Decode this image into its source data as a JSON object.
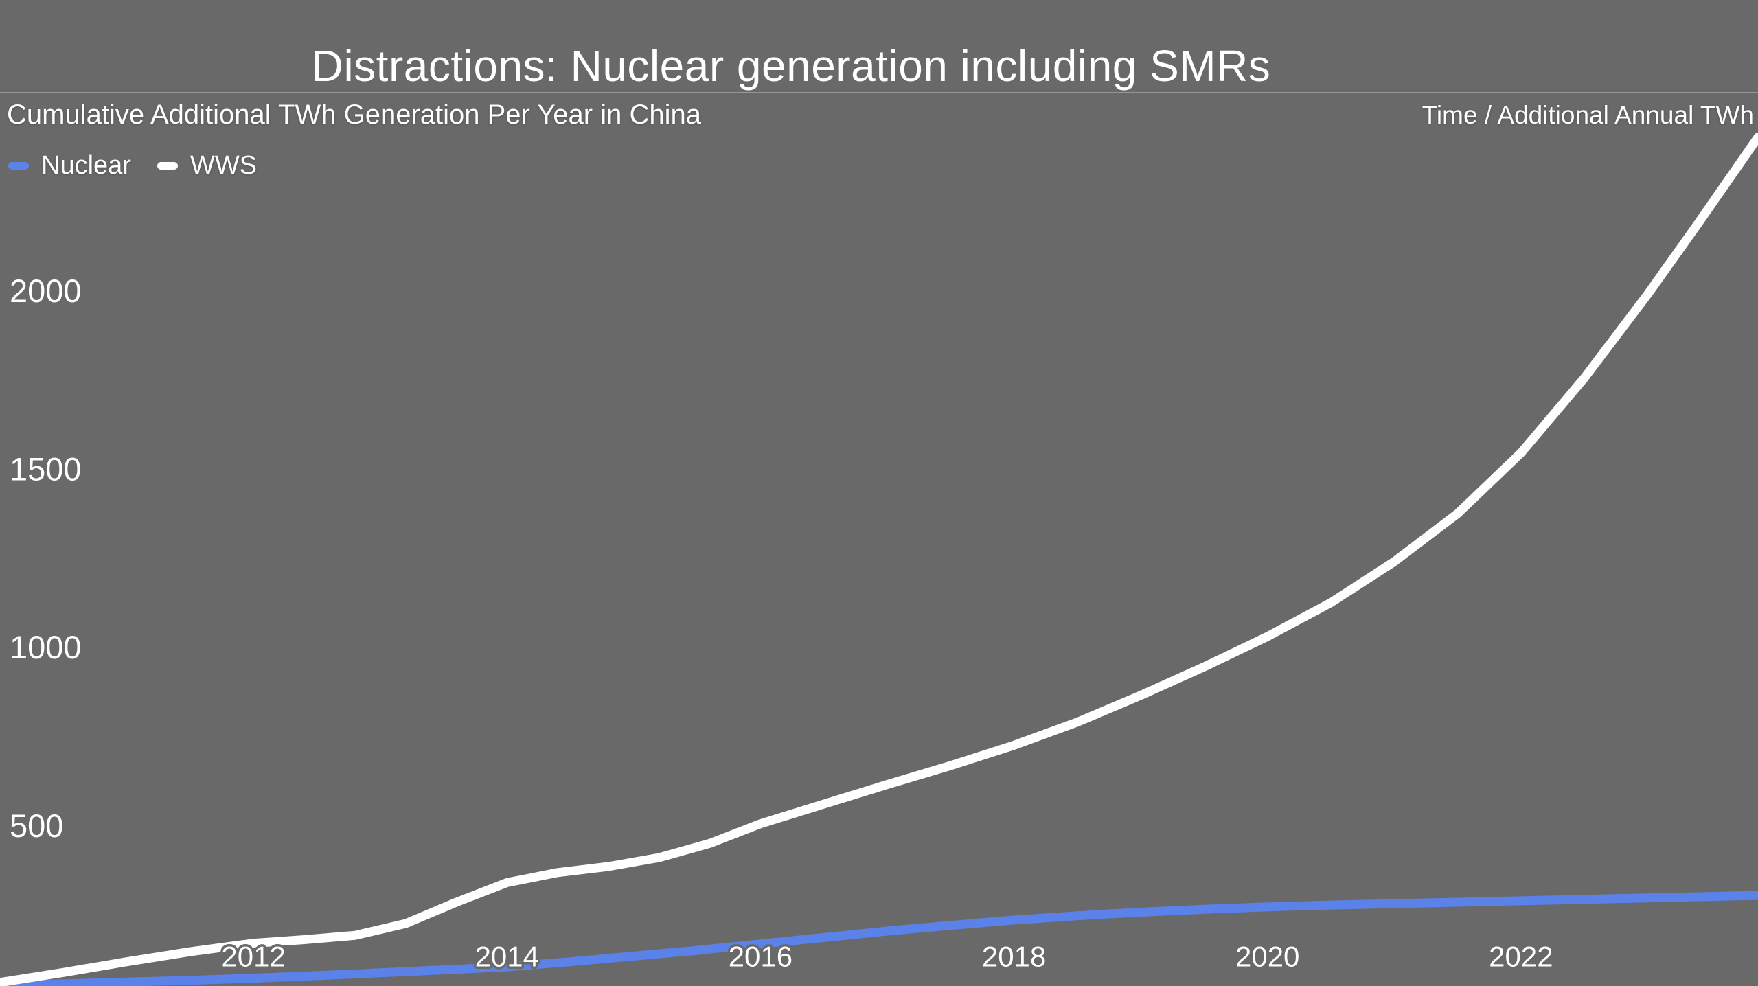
{
  "page": {
    "background_color": "#696969",
    "text_color": "#ffffff"
  },
  "header": {
    "title": "Distractions: Nuclear generation including SMRs"
  },
  "subheader": {
    "chart_title": "Cumulative Additional TWh Generation Per Year in China",
    "axis_caption": "Time / Additional Annual TWh"
  },
  "legend": {
    "items": [
      {
        "label": "Nuclear",
        "color": "#5b82e8"
      },
      {
        "label": "WWS",
        "color": "#ffffff"
      }
    ]
  },
  "chart_data": {
    "type": "line",
    "title": "Cumulative Additional TWh Generation Per Year in China",
    "xlabel": "Time",
    "ylabel": "Additional Annual TWh",
    "xlim": [
      2010.0,
      2023.87
    ],
    "ylim": [
      50,
      2815
    ],
    "x_ticks": [
      2012,
      2014,
      2016,
      2018,
      2020,
      2022
    ],
    "y_ticks": [
      500,
      1000,
      1500,
      2000
    ],
    "grid": false,
    "legend_position": "top-left",
    "line_width": 13,
    "series": [
      {
        "name": "Nuclear",
        "color": "#5b82e8",
        "points": [
          [
            2010.0,
            52
          ],
          [
            2010.5,
            56
          ],
          [
            2011.0,
            61
          ],
          [
            2011.5,
            66
          ],
          [
            2012.0,
            72
          ],
          [
            2012.5,
            79
          ],
          [
            2013.0,
            87
          ],
          [
            2013.5,
            95
          ],
          [
            2014.0,
            104
          ],
          [
            2014.5,
            118
          ],
          [
            2015.0,
            134
          ],
          [
            2015.5,
            150
          ],
          [
            2016.0,
            168
          ],
          [
            2016.5,
            186
          ],
          [
            2017.0,
            204
          ],
          [
            2017.5,
            220
          ],
          [
            2018.0,
            235
          ],
          [
            2018.5,
            247
          ],
          [
            2019.0,
            257
          ],
          [
            2019.5,
            265
          ],
          [
            2020.0,
            272
          ],
          [
            2020.5,
            277
          ],
          [
            2021.0,
            281
          ],
          [
            2021.5,
            285
          ],
          [
            2022.0,
            289
          ],
          [
            2022.5,
            293
          ],
          [
            2023.0,
            297
          ],
          [
            2023.5,
            301
          ],
          [
            2023.87,
            304
          ]
        ]
      },
      {
        "name": "WWS",
        "color": "#ffffff",
        "points": [
          [
            2010.0,
            60
          ],
          [
            2010.5,
            88
          ],
          [
            2011.0,
            118
          ],
          [
            2011.5,
            146
          ],
          [
            2012.0,
            170
          ],
          [
            2012.4,
            180
          ],
          [
            2012.8,
            192
          ],
          [
            2013.2,
            225
          ],
          [
            2013.6,
            285
          ],
          [
            2014.0,
            340
          ],
          [
            2014.4,
            368
          ],
          [
            2014.8,
            385
          ],
          [
            2015.2,
            410
          ],
          [
            2015.6,
            450
          ],
          [
            2016.0,
            505
          ],
          [
            2016.5,
            560
          ],
          [
            2017.0,
            615
          ],
          [
            2017.5,
            668
          ],
          [
            2018.0,
            725
          ],
          [
            2018.5,
            790
          ],
          [
            2019.0,
            865
          ],
          [
            2019.5,
            945
          ],
          [
            2020.0,
            1030
          ],
          [
            2020.5,
            1125
          ],
          [
            2021.0,
            1240
          ],
          [
            2021.5,
            1375
          ],
          [
            2022.0,
            1545
          ],
          [
            2022.5,
            1755
          ],
          [
            2023.0,
            1990
          ],
          [
            2023.4,
            2190
          ],
          [
            2023.87,
            2430
          ]
        ]
      }
    ]
  }
}
